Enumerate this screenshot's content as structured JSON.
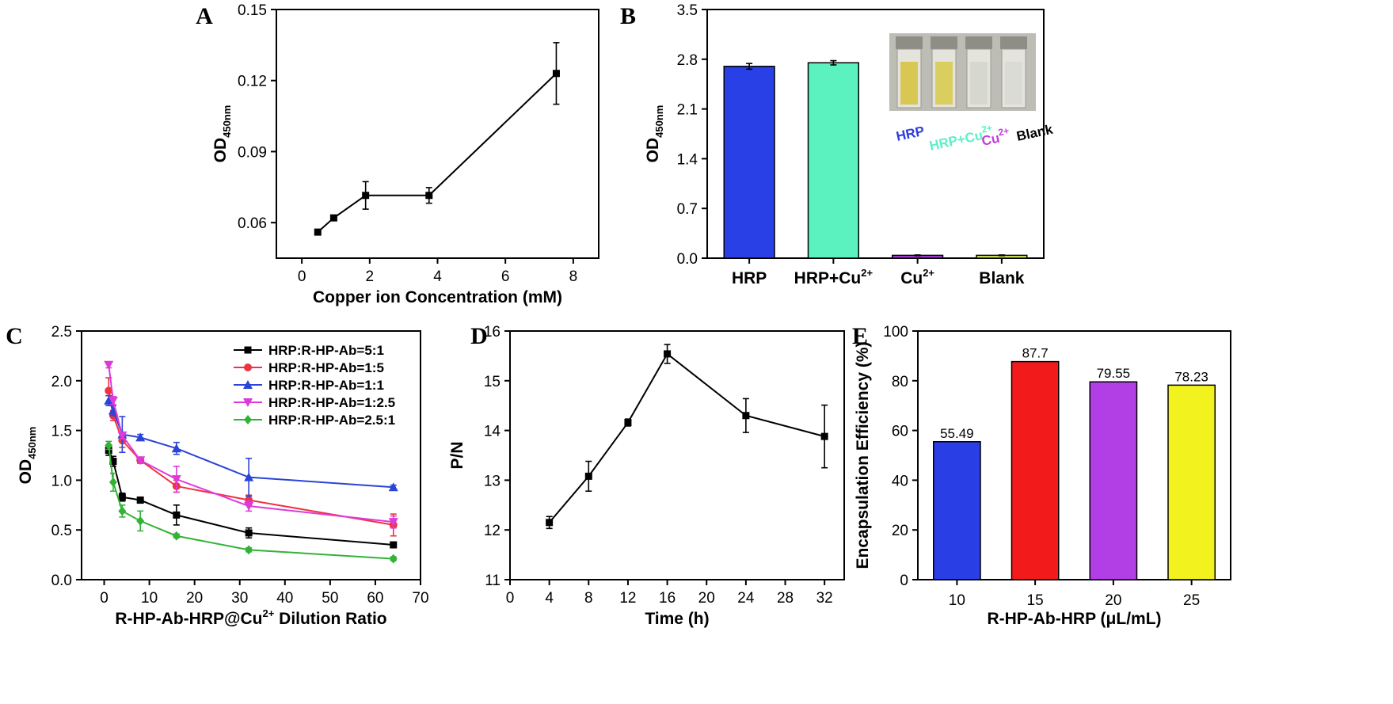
{
  "panels": [
    {
      "id": "A",
      "letter": "A",
      "chart_data": {
        "type": "line",
        "title": "",
        "xlabel": "Copper ion Concentration (mM)",
        "ylabel": "OD",
        "ylabel_sub": "450nm",
        "xlim": [
          -0.75,
          8.75
        ],
        "ylim": [
          0.045,
          0.15
        ],
        "xticks": [
          {
            "v": 0,
            "l": "0"
          },
          {
            "v": 2,
            "l": "2"
          },
          {
            "v": 4,
            "l": "4"
          },
          {
            "v": 6,
            "l": "6"
          },
          {
            "v": 8,
            "l": "8"
          }
        ],
        "yticks": [
          {
            "v": 0.06,
            "l": "0.06"
          },
          {
            "v": 0.09,
            "l": "0.09"
          },
          {
            "v": 0.12,
            "l": "0.12"
          },
          {
            "v": 0.15,
            "l": "0.15"
          }
        ],
        "series": [
          {
            "color": "#000000",
            "marker": "square",
            "x": [
              0.47,
              0.94,
              1.88,
              3.75,
              7.5
            ],
            "y": [
              0.056,
              0.062,
              0.0715,
              0.0715,
              0.123
            ],
            "err": [
              0.0005,
              0.0005,
              0.0058,
              0.0033,
              0.013
            ]
          }
        ]
      }
    },
    {
      "id": "B",
      "letter": "B",
      "chart_data": {
        "type": "bar",
        "title": "",
        "xlabel": "",
        "ylabel": "OD",
        "ylabel_sub": "450nm",
        "categories": [
          "HRP",
          "HRP+Cu",
          "Cu",
          "Blank"
        ],
        "category_sup": [
          "",
          "2+",
          "2+",
          ""
        ],
        "values": [
          2.7,
          2.75,
          0.04,
          0.04
        ],
        "err": [
          0.04,
          0.03,
          0.005,
          0.005
        ],
        "colors": [
          "#2840e6",
          "#5bf2c0",
          "#b03ce0",
          "#d8ef5a"
        ],
        "ylim": [
          0,
          3.5
        ],
        "yticks": [
          {
            "v": 0,
            "l": "0.0"
          },
          {
            "v": 0.7,
            "l": "0.7"
          },
          {
            "v": 1.4,
            "l": "1.4"
          },
          {
            "v": 2.1,
            "l": "2.1"
          },
          {
            "v": 2.8,
            "l": "2.8"
          },
          {
            "v": 3.5,
            "l": "3.5"
          }
        ],
        "inset": {
          "labels": [
            {
              "text": "HRP",
              "sup": "",
              "color": "#2d3dde"
            },
            {
              "text": "HRP+Cu",
              "sup": "2+",
              "color": "#5cf0c8"
            },
            {
              "text": "Cu",
              "sup": "2+",
              "color": "#c43bdc"
            },
            {
              "text": "Blank",
              "sup": "",
              "color": "#000000"
            }
          ]
        }
      }
    },
    {
      "id": "C",
      "letter": "C",
      "chart_data": {
        "type": "line",
        "title": "",
        "xlabel": "R-HP-Ab-HRP@Cu",
        "xlabel_sup": "2+",
        "xlabel_tail": " Dilution Ratio",
        "ylabel": "OD",
        "ylabel_sub": "450nm",
        "xlim": [
          -5,
          70
        ],
        "ylim": [
          0,
          2.5
        ],
        "xticks": [
          {
            "v": 0,
            "l": "0"
          },
          {
            "v": 10,
            "l": "10"
          },
          {
            "v": 20,
            "l": "20"
          },
          {
            "v": 30,
            "l": "30"
          },
          {
            "v": 40,
            "l": "40"
          },
          {
            "v": 50,
            "l": "50"
          },
          {
            "v": 60,
            "l": "60"
          },
          {
            "v": 70,
            "l": "70"
          }
        ],
        "yticks": [
          {
            "v": 0,
            "l": "0.0"
          },
          {
            "v": 0.5,
            "l": "0.5"
          },
          {
            "v": 1.0,
            "l": "1.0"
          },
          {
            "v": 1.5,
            "l": "1.5"
          },
          {
            "v": 2.0,
            "l": "2.0"
          },
          {
            "v": 2.5,
            "l": "2.5"
          }
        ],
        "legend": "top-right",
        "series": [
          {
            "name": "HRP:R-HP-Ab=5:1",
            "color": "#000000",
            "marker": "square",
            "x": [
              1,
              2,
              4,
              8,
              16,
              32,
              64
            ],
            "y": [
              1.3,
              1.19,
              0.83,
              0.8,
              0.65,
              0.47,
              0.35
            ],
            "err": [
              0.05,
              0.05,
              0.04,
              0.03,
              0.1,
              0.05,
              0.02
            ]
          },
          {
            "name": "HRP:R-HP-Ab=1:5",
            "color": "#ee3345",
            "marker": "circle",
            "x": [
              1,
              2,
              4,
              8,
              16,
              32,
              64
            ],
            "y": [
              1.9,
              1.65,
              1.4,
              1.2,
              0.94,
              0.8,
              0.55
            ],
            "err": [
              0.13,
              0.05,
              0.07,
              0.03,
              0.06,
              0.05,
              0.11
            ]
          },
          {
            "name": "HRP:R-HP-Ab=1:1",
            "color": "#2a44d8",
            "marker": "triangle-up",
            "x": [
              1,
              2,
              4,
              8,
              16,
              32,
              64
            ],
            "y": [
              1.8,
              1.7,
              1.46,
              1.43,
              1.32,
              1.03,
              0.93
            ],
            "err": [
              0.05,
              0.05,
              0.18,
              0.03,
              0.06,
              0.19,
              0.02
            ]
          },
          {
            "name": "HRP:R-HP-Ab=1:2.5",
            "color": "#dd3ad8",
            "marker": "triangle-down",
            "x": [
              1,
              2,
              4,
              8,
              16,
              32,
              64
            ],
            "y": [
              2.16,
              1.8,
              1.45,
              1.2,
              1.01,
              0.74,
              0.58
            ],
            "err": [
              0.03,
              0.04,
              0.03,
              0.03,
              0.13,
              0.05,
              0.06
            ]
          },
          {
            "name": "HRP:R-HP-Ab=2.5:1",
            "color": "#33b336",
            "marker": "diamond",
            "x": [
              1,
              2,
              4,
              8,
              16,
              32,
              64
            ],
            "y": [
              1.35,
              0.98,
              0.69,
              0.59,
              0.44,
              0.3,
              0.21
            ],
            "err": [
              0.04,
              0.09,
              0.06,
              0.1,
              0.02,
              0.02,
              0.02
            ]
          }
        ]
      }
    },
    {
      "id": "D",
      "letter": "D",
      "chart_data": {
        "type": "line",
        "title": "",
        "xlabel": "Time (h)",
        "ylabel": "P/N",
        "xlim": [
          0,
          34
        ],
        "ylim": [
          11,
          16
        ],
        "xticks": [
          {
            "v": 0,
            "l": "0"
          },
          {
            "v": 4,
            "l": "4"
          },
          {
            "v": 8,
            "l": "8"
          },
          {
            "v": 12,
            "l": "12"
          },
          {
            "v": 16,
            "l": "16"
          },
          {
            "v": 20,
            "l": "20"
          },
          {
            "v": 24,
            "l": "24"
          },
          {
            "v": 28,
            "l": "28"
          },
          {
            "v": 32,
            "l": "32"
          }
        ],
        "yticks": [
          {
            "v": 11,
            "l": "11"
          },
          {
            "v": 12,
            "l": "12"
          },
          {
            "v": 13,
            "l": "13"
          },
          {
            "v": 14,
            "l": "14"
          },
          {
            "v": 15,
            "l": "15"
          },
          {
            "v": 16,
            "l": "16"
          }
        ],
        "series": [
          {
            "color": "#000000",
            "marker": "square",
            "x": [
              4,
              8,
              12,
              16,
              24,
              32
            ],
            "y": [
              12.15,
              13.08,
              14.16,
              15.54,
              14.3,
              13.88
            ],
            "err": [
              0.12,
              0.3,
              0.07,
              0.19,
              0.34,
              0.63
            ]
          }
        ]
      }
    },
    {
      "id": "E",
      "letter": "E",
      "chart_data": {
        "type": "bar",
        "title": "",
        "xlabel": "R-HP-Ab-HRP (μL/mL)",
        "ylabel": "Encapsulation Efficiency (%)",
        "categories": [
          "10",
          "15",
          "20",
          "25"
        ],
        "values": [
          55.49,
          87.7,
          79.55,
          78.23
        ],
        "value_labels": [
          "55.49",
          "87.7",
          "79.55",
          "78.23"
        ],
        "colors": [
          "#2a3ee6",
          "#f21a1a",
          "#b23ee6",
          "#f2f21e"
        ],
        "ylim": [
          0,
          100
        ],
        "yticks": [
          {
            "v": 0,
            "l": "0"
          },
          {
            "v": 20,
            "l": "20"
          },
          {
            "v": 40,
            "l": "40"
          },
          {
            "v": 60,
            "l": "60"
          },
          {
            "v": 80,
            "l": "80"
          },
          {
            "v": 100,
            "l": "100"
          }
        ]
      }
    }
  ]
}
